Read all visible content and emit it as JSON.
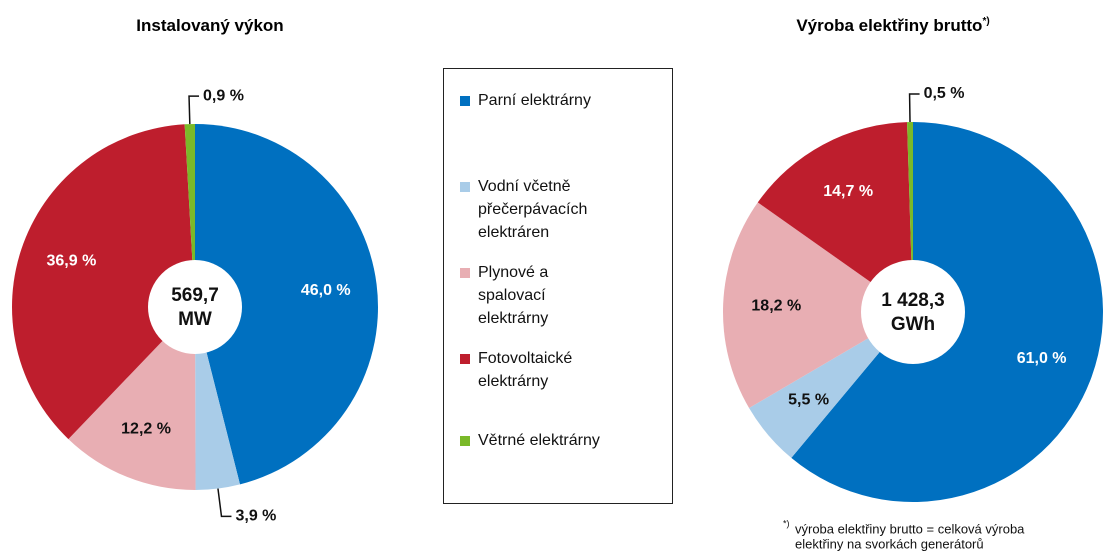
{
  "chart_data": [
    {
      "type": "pie",
      "title": "Instalovaný výkon",
      "categories": [
        "Parní elektrárny",
        "Vodní včetně přečerpávacích elektráren",
        "Plynové a spalovací elektrárny",
        "Fotovoltaické elektrárny",
        "Větrné elektrárny"
      ],
      "values": [
        46.0,
        3.9,
        12.2,
        36.9,
        0.9
      ],
      "value_labels": [
        "46,0 %",
        "3,9 %",
        "12,2 %",
        "36,9 %",
        "0,9 %"
      ],
      "colors": [
        "#0070c0",
        "#a9cce8",
        "#e8aeb3",
        "#be1e2d",
        "#7ab929"
      ],
      "center_label": [
        "569,7",
        "MW"
      ]
    },
    {
      "type": "pie",
      "title": "Výroba elektřiny brutto",
      "title_note": "*)",
      "categories": [
        "Parní elektrárny",
        "Vodní včetně přečerpávacích elektráren",
        "Plynové a spalovací elektrárny",
        "Fotovoltaické elektrárny",
        "Větrné elektrárny"
      ],
      "values": [
        61.0,
        5.5,
        18.2,
        14.7,
        0.5
      ],
      "value_labels": [
        "61,0 %",
        "5,5 %",
        "18,2 %",
        "14,7 %",
        "0,5 %"
      ],
      "colors": [
        "#0070c0",
        "#a9cce8",
        "#e8aeb3",
        "#be1e2d",
        "#7ab929"
      ],
      "center_label": [
        "1 428,3",
        "GWh"
      ],
      "footnote_mark": "*)",
      "footnote": [
        "výroba elektřiny brutto = celková výroba",
        "elektřiny na svorkách generátorů"
      ]
    }
  ]
}
